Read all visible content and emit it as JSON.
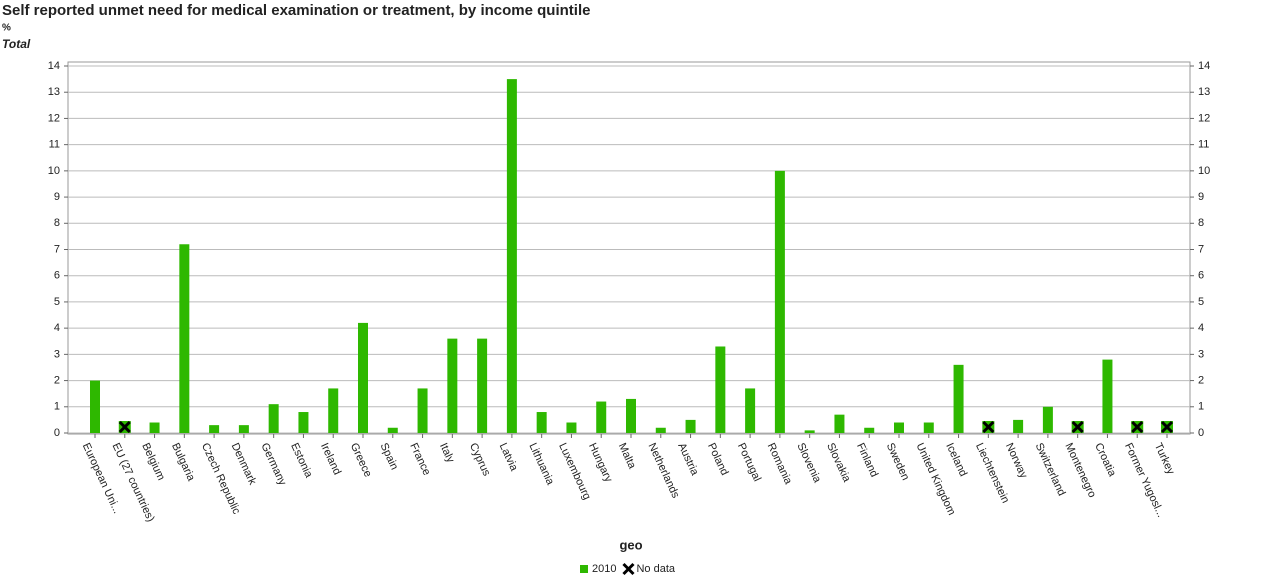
{
  "chart_data": {
    "type": "bar",
    "title": "Self reported unmet need for medical examination or treatment,  by income quintile",
    "unit": "%",
    "subtitle": "Total",
    "x_label": "geo",
    "categories": [
      "European Uni...",
      "EU (27 countries)",
      "Belgium",
      "Bulgaria",
      "Czech Republic",
      "Denmark",
      "Germany",
      "Estonia",
      "Ireland",
      "Greece",
      "Spain",
      "France",
      "Italy",
      "Cyprus",
      "Latvia",
      "Lithuania",
      "Luxembourg",
      "Hungary",
      "Malta",
      "Netherlands",
      "Austria",
      "Poland",
      "Portugal",
      "Romania",
      "Slovenia",
      "Slovakia",
      "Finland",
      "Sweden",
      "United Kingdom",
      "Iceland",
      "Liechtenstein",
      "Norway",
      "Switzerland",
      "Montenegro",
      "Croatia",
      "Former Yugosl...",
      "Turkey"
    ],
    "series": [
      {
        "name": "2010",
        "color": "#2eb800",
        "values": [
          2.0,
          null,
          0.4,
          7.2,
          0.3,
          0.3,
          1.1,
          0.8,
          1.7,
          4.2,
          0.2,
          1.7,
          3.6,
          3.6,
          13.5,
          0.8,
          0.4,
          1.2,
          1.3,
          0.2,
          0.5,
          3.3,
          1.7,
          10.0,
          0.1,
          0.7,
          0.2,
          0.4,
          0.4,
          2.6,
          null,
          0.5,
          1.0,
          null,
          2.8,
          null,
          null
        ]
      }
    ],
    "no_data_label": "No data",
    "ylim": [
      0,
      14
    ],
    "yticks": [
      0,
      1,
      2,
      3,
      4,
      5,
      6,
      7,
      8,
      9,
      10,
      11,
      12,
      13,
      14
    ],
    "grid": true
  }
}
